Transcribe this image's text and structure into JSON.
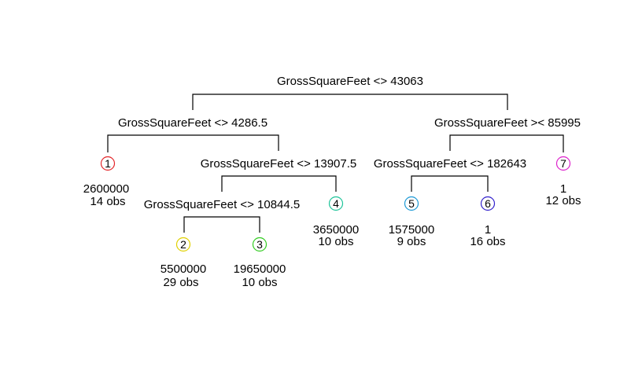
{
  "tree": {
    "splits": [
      {
        "id": "root",
        "label": "GrossSquareFeet <> 43063"
      },
      {
        "id": "left",
        "label": "GrossSquareFeet <> 4286.5"
      },
      {
        "id": "right",
        "label": "GrossSquareFeet >< 85995"
      },
      {
        "id": "left-right",
        "label": "GrossSquareFeet <> 13907.5"
      },
      {
        "id": "right-left",
        "label": "GrossSquareFeet <> 182643"
      },
      {
        "id": "left-right-left",
        "label": "GrossSquareFeet <> 10844.5"
      }
    ],
    "leaves": [
      {
        "id": "1",
        "value": "2600000",
        "obs": "14 obs",
        "color": "#e3262a"
      },
      {
        "id": "2",
        "value": "5500000",
        "obs": "29 obs",
        "color": "#e0d000"
      },
      {
        "id": "3",
        "value": "19650000",
        "obs": "10 obs",
        "color": "#33cc22"
      },
      {
        "id": "4",
        "value": "3650000",
        "obs": "10 obs",
        "color": "#1fc49a"
      },
      {
        "id": "5",
        "value": "1575000",
        "obs": "9 obs",
        "color": "#1e9ad6"
      },
      {
        "id": "6",
        "value": "1",
        "obs": "16 obs",
        "color": "#3322cc"
      },
      {
        "id": "7",
        "value": "1",
        "obs": "12 obs",
        "color": "#dd22cc"
      }
    ]
  }
}
